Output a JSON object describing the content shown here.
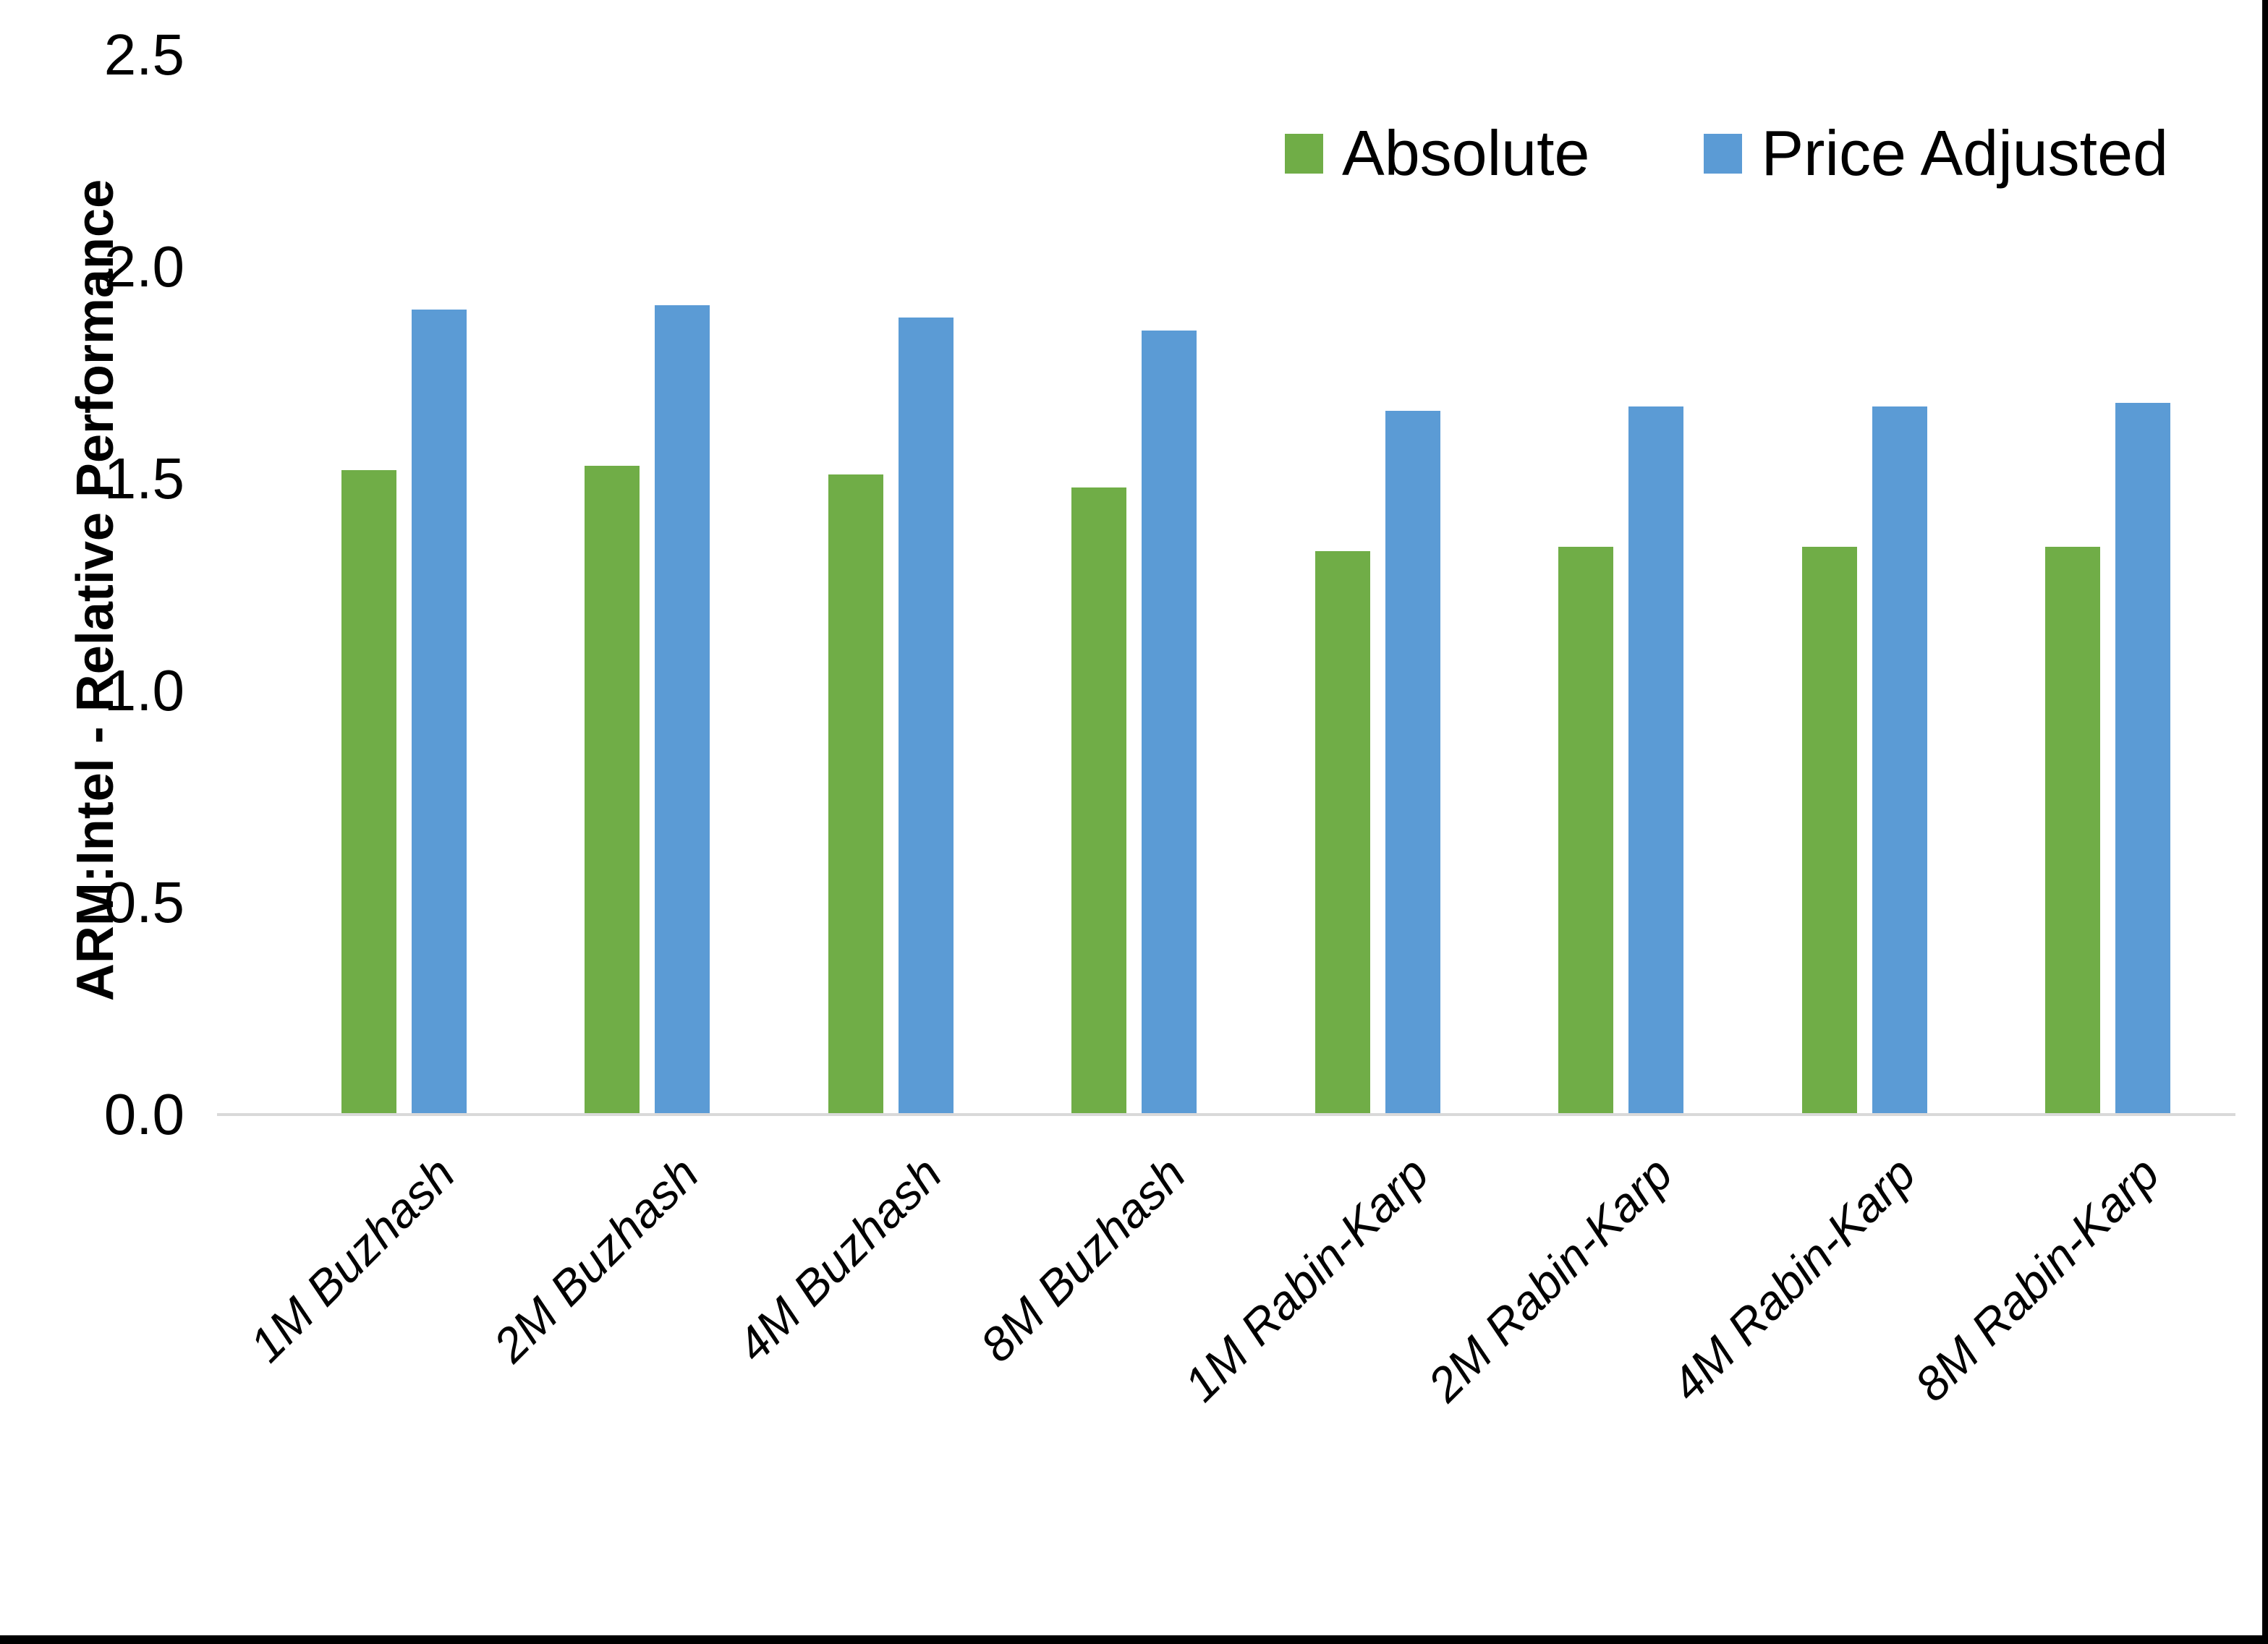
{
  "chart_data": {
    "type": "bar",
    "title": "",
    "ylabel": "ARM:Intel - Relative Performance",
    "xlabel": "",
    "ylim": [
      0,
      2.5
    ],
    "ytick_labels": [
      "0.0",
      "0.5",
      "1.0",
      "1.5",
      "2.0",
      "2.5"
    ],
    "ytick_values": [
      0.0,
      0.5,
      1.0,
      1.5,
      2.0,
      2.5
    ],
    "grid": "off",
    "legend_position": "top-right",
    "axis_line_color": "#D9D9D9",
    "categories": [
      "1M Buzhash",
      "2M Buzhash",
      "4M Buzhash",
      "8M Buzhash",
      "1M Rabin-Karp",
      "2M Rabin-Karp",
      "4M Rabin-Karp",
      "8M Rabin-Karp"
    ],
    "series": [
      {
        "name": "Absolute",
        "color": "#70AD47",
        "values": [
          1.52,
          1.53,
          1.51,
          1.48,
          1.33,
          1.34,
          1.34,
          1.34
        ]
      },
      {
        "name": "Price Adjusted",
        "color": "#5B9BD5",
        "values": [
          1.9,
          1.91,
          1.88,
          1.85,
          1.66,
          1.67,
          1.67,
          1.68
        ]
      }
    ]
  }
}
